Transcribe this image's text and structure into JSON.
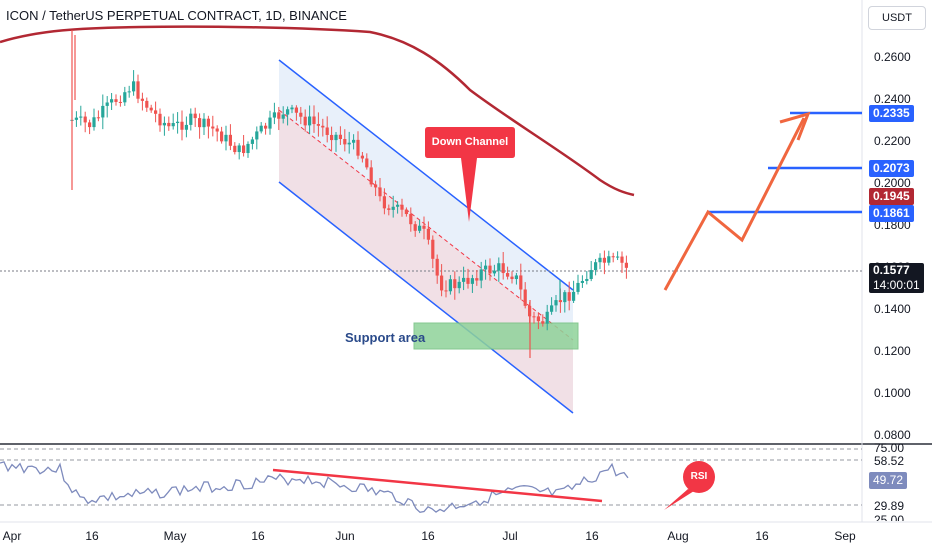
{
  "header": {
    "title": "ICON / TetherUS PERPETUAL CONTRACT, 1D, BINANCE",
    "currency": "USDT"
  },
  "price_axis": {
    "ticks": [
      "0.2600",
      "0.2400",
      "0.2200",
      "0.2000",
      "0.1800",
      "0.1600",
      "0.1400",
      "0.1200",
      "0.1000",
      "0.0800"
    ]
  },
  "price_tags": {
    "target_3": "0.2335",
    "target_2": "0.2073",
    "ma_value": "0.1945",
    "target_1": "0.1861",
    "current_price": "0.1577",
    "countdown": "14:00:01"
  },
  "rsi_axis": {
    "ticks": [
      "75.00",
      "58.52",
      "29.89",
      "25.00"
    ],
    "current_value": "49.72"
  },
  "time_axis": {
    "labels": [
      "Apr",
      "16",
      "May",
      "16",
      "Jun",
      "16",
      "Jul",
      "16",
      "Aug",
      "16",
      "Sep"
    ]
  },
  "annotations": {
    "down_channel": "Down Channel",
    "support_area": "Support area",
    "rsi": "RSI"
  },
  "colors": {
    "up_candle": "#26a69a",
    "down_candle": "#ef5350",
    "channel": "#2962ff",
    "moving_average": "#b22833",
    "forecast_arrow": "#f0663f",
    "callout": "#f23645",
    "support_fill": "#8fd39a",
    "rsi_line": "#7e8bbd"
  }
}
